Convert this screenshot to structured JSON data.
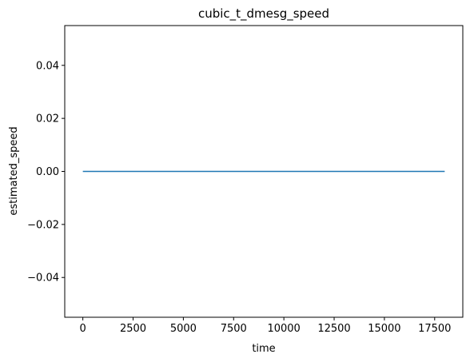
{
  "chart_data": {
    "type": "line",
    "title": "cubic_t_dmesg_speed",
    "xlabel": "time",
    "ylabel": "estimated_speed",
    "xlim": [
      -900,
      18900
    ],
    "ylim": [
      -0.055,
      0.055
    ],
    "xticks": [
      0,
      2500,
      5000,
      7500,
      10000,
      12500,
      15000,
      17500
    ],
    "xtick_labels": [
      "0",
      "2500",
      "5000",
      "7500",
      "10000",
      "12500",
      "15000",
      "17500"
    ],
    "yticks": [
      -0.04,
      -0.02,
      0.0,
      0.02,
      0.04
    ],
    "ytick_labels": [
      "−0.04",
      "−0.02",
      "0.00",
      "0.02",
      "0.04"
    ],
    "grid": false,
    "series": [
      {
        "color": "#1f77b4",
        "x": [
          0,
          18000
        ],
        "y": [
          0,
          0
        ]
      }
    ]
  }
}
